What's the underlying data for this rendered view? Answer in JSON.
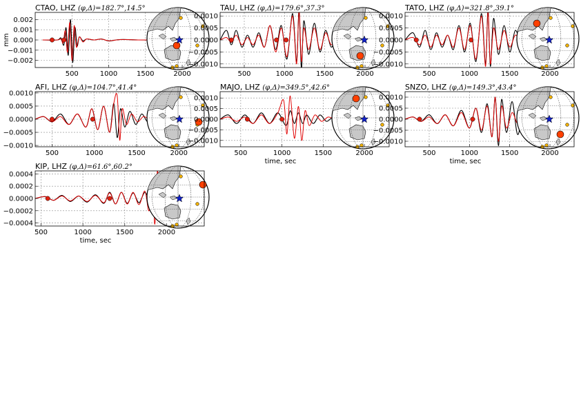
{
  "figure": {
    "ylabel": "mm",
    "xlabel": "time, sec"
  },
  "colors": {
    "observed": "#000000",
    "synthetic": "#e00000",
    "marker": "#e02010",
    "source_star": "#1020c8",
    "station_small": "#f0b000",
    "station_big": "#ff4000",
    "land": "#c8c8c8"
  },
  "panels": [
    {
      "title": "CTAO, LHZ",
      "math_label": "(φ,Δ)=182.7°,14.5°",
      "xticks": [
        "500",
        "1000",
        "1500",
        "2000"
      ],
      "yticks": [
        "0.002",
        "0.001",
        "0.000",
        "−0.001",
        "−0.002"
      ],
      "show_xlabel": false,
      "show_ylabel": true
    },
    {
      "title": "TAU, LHZ",
      "math_label": "(φ,Δ)=179.6°,37.3°",
      "xticks": [
        "500",
        "1000",
        "1500",
        "2000"
      ],
      "yticks": [
        "0.0010",
        "0.0005",
        "0.0000",
        "−0.0005",
        "−0.0010"
      ],
      "show_xlabel": false,
      "show_ylabel": false
    },
    {
      "title": "TATO, LHZ",
      "math_label": "(φ,Δ)=321.8°,39.1°",
      "xticks": [
        "500",
        "1000",
        "1500",
        "2000"
      ],
      "yticks": [
        "0.0010",
        "0.0005",
        "0.0000",
        "−0.0005",
        "−0.0010"
      ],
      "show_xlabel": false,
      "show_ylabel": false
    },
    {
      "title": "AFI, LHZ",
      "math_label": "(φ,Δ)=104.7°,41.4°",
      "xticks": [
        "500",
        "1000",
        "1500",
        "2000"
      ],
      "yticks": [
        "0.0010",
        "0.0005",
        "0.0000",
        "−0.0005",
        "−0.0010"
      ],
      "show_xlabel": false,
      "show_ylabel": false
    },
    {
      "title": "MAJO, LHZ",
      "math_label": "(φ,Δ)=349.5°,42.6°",
      "xticks": [
        "500",
        "1000",
        "1500",
        "2000"
      ],
      "yticks": [
        "0.0010",
        "0.0005",
        "0.0000",
        "−0.0005",
        "−0.0010"
      ],
      "show_xlabel": true,
      "show_ylabel": false
    },
    {
      "title": "SNZO, LHZ",
      "math_label": "(φ,Δ)=149.3°,43.4°",
      "xticks": [
        "500",
        "1000",
        "1500",
        "2000"
      ],
      "yticks": [
        "0.0010",
        "0.0005",
        "0.0000",
        "−0.0005",
        "−0.0010"
      ],
      "show_xlabel": true,
      "show_ylabel": false
    },
    {
      "title": "KIP, LHZ",
      "math_label": "(φ,Δ)=61.6°,60.2°",
      "xticks": [
        "500",
        "1000",
        "1500",
        "2000"
      ],
      "yticks": [
        "0.0004",
        "0.0002",
        "0.0000",
        "−0.0002",
        "−0.0004"
      ],
      "show_xlabel": true,
      "show_ylabel": false
    }
  ],
  "chart_data": [
    {
      "type": "line",
      "title": "CTAO, LHZ (φ,Δ)=182.7°,14.5°",
      "xlabel": "",
      "ylabel": "mm",
      "xlim": [
        0,
        2300
      ],
      "ylim": [
        -0.0027,
        0.0027
      ],
      "grid": true,
      "markers_x": [
        230,
        390
      ],
      "event_marker": "small red circle",
      "series": [
        {
          "role": "observed",
          "x": [
            100,
            300,
            350,
            390,
            420,
            450,
            480,
            510,
            540,
            570,
            600,
            650,
            700,
            800,
            900,
            1000,
            1100,
            1200,
            1400,
            1700
          ],
          "y": [
            0,
            0,
            0.0002,
            -0.0005,
            0.0012,
            -0.0015,
            0.002,
            -0.0022,
            0.0012,
            -0.0006,
            0.0003,
            -0.0001,
            0.0001,
            0,
            0.0001,
            -0.0001,
            0,
            5e-05,
            0,
            0
          ]
        },
        {
          "role": "synthetic",
          "x": [
            100,
            300,
            350,
            380,
            410,
            440,
            470,
            500,
            530,
            560,
            600,
            650,
            700,
            800,
            900,
            1000,
            1100,
            1200,
            1400,
            1700
          ],
          "y": [
            0,
            0,
            0.0001,
            -0.0003,
            0.0009,
            -0.0012,
            0.0017,
            -0.002,
            0.0014,
            -0.0007,
            0.0003,
            -0.0002,
            0.0001,
            0,
            8e-05,
            -8e-05,
            0,
            4e-05,
            0,
            0
          ]
        }
      ]
    },
    {
      "type": "line",
      "title": "TAU, LHZ (φ,Δ)=179.6°,37.3°",
      "xlim": [
        200,
        2300
      ],
      "ylim": [
        -0.00115,
        0.00115
      ],
      "grid": true,
      "markers_x": [
        340,
        900,
        1020
      ],
      "series": [
        {
          "role": "observed",
          "x": [
            200,
            280,
            340,
            400,
            470,
            540,
            610,
            680,
            750,
            820,
            890,
            960,
            1030,
            1100,
            1150,
            1180,
            1210,
            1240,
            1300,
            1370,
            1440,
            1510,
            1580,
            1650,
            1700
          ],
          "y": [
            0,
            0.0004,
            -0.0002,
            0.0004,
            -0.0003,
            0.0002,
            -0.0003,
            0.0003,
            -0.0003,
            0.0006,
            -0.0004,
            0.0006,
            -0.0008,
            0.0011,
            -0.0009,
            0.0012,
            -0.0012,
            0.0008,
            -0.0006,
            0.0007,
            -0.0005,
            0.0004,
            -0.0003,
            0.0002,
            0
          ]
        },
        {
          "role": "synthetic",
          "x": [
            200,
            280,
            340,
            400,
            470,
            540,
            610,
            680,
            750,
            820,
            890,
            960,
            1030,
            1100,
            1150,
            1180,
            1210,
            1240,
            1300,
            1370,
            1440,
            1510,
            1580,
            1650,
            1700
          ],
          "y": [
            0,
            0.0001,
            -0.0001,
            0.0002,
            -0.0002,
            0.0001,
            -0.0002,
            0.0002,
            -0.0003,
            0.0006,
            -0.0005,
            0.0005,
            -0.0007,
            0.001,
            -0.001,
            0.0013,
            -0.0009,
            0.0005,
            -0.0004,
            0.0005,
            -0.0004,
            0.0003,
            -0.0002,
            0.0001,
            0
          ]
        }
      ]
    },
    {
      "type": "line",
      "title": "TATO, LHZ (φ,Δ)=321.8°,39.1°",
      "xlim": [
        200,
        2300
      ],
      "ylim": [
        -0.00115,
        0.00115
      ],
      "grid": true,
      "markers_x": [
        340,
        1020
      ],
      "series": [
        {
          "role": "observed",
          "x": [
            200,
            300,
            380,
            450,
            520,
            590,
            660,
            730,
            800,
            870,
            940,
            1010,
            1080,
            1150,
            1200,
            1230,
            1260,
            1300,
            1360,
            1430,
            1500,
            1570,
            1640,
            1700
          ],
          "y": [
            0,
            0.0003,
            -0.0003,
            0.0004,
            -0.0004,
            0.0003,
            -0.0003,
            0.0002,
            -0.0004,
            0.0006,
            -0.0005,
            0.0007,
            -0.0009,
            0.0011,
            -0.001,
            0.0012,
            -0.0011,
            0.0009,
            -0.0006,
            0.0006,
            -0.0005,
            0.0004,
            -0.0002,
            0
          ]
        },
        {
          "role": "synthetic",
          "x": [
            200,
            300,
            380,
            450,
            520,
            590,
            660,
            730,
            800,
            870,
            940,
            1010,
            1080,
            1150,
            1200,
            1230,
            1260,
            1300,
            1360,
            1430,
            1500,
            1570,
            1640,
            1700
          ],
          "y": [
            0,
            0.0001,
            -0.0002,
            0.0002,
            -0.0003,
            0.0002,
            -0.0002,
            0.0002,
            -0.0003,
            0.0005,
            -0.0004,
            0.0006,
            -0.0008,
            0.001,
            -0.0011,
            0.0013,
            -0.001,
            0.0005,
            -0.0004,
            0.0004,
            -0.0003,
            0.0002,
            -0.0001,
            0
          ]
        }
      ]
    },
    {
      "type": "line",
      "title": "AFI, LHZ (φ,Δ)=104.7°,41.4°",
      "xlim": [
        300,
        2300
      ],
      "ylim": [
        -0.00105,
        0.00105
      ],
      "grid": true,
      "markers_x": [
        500,
        980
      ],
      "series": [
        {
          "role": "observed",
          "x": [
            300,
            400,
            500,
            600,
            700,
            800,
            900,
            970,
            1040,
            1110,
            1180,
            1230,
            1270,
            1310,
            1360,
            1420,
            1490,
            1560,
            1630,
            1700,
            1750
          ],
          "y": [
            0,
            0.0001,
            -0.0001,
            0.0002,
            -0.0002,
            0.0002,
            -0.0003,
            0.0004,
            -0.0004,
            0.0005,
            -0.0005,
            0.0006,
            -0.0007,
            0.0004,
            -0.0003,
            0.0003,
            -0.0002,
            0.0002,
            -0.0001,
            0.0001,
            0
          ]
        },
        {
          "role": "synthetic",
          "x": [
            300,
            400,
            500,
            600,
            700,
            800,
            900,
            970,
            1040,
            1110,
            1180,
            1230,
            1270,
            1300,
            1330,
            1380,
            1440,
            1510,
            1580,
            1650,
            1750
          ],
          "y": [
            0,
            0.0001,
            -0.0001,
            0.0001,
            -0.0002,
            0.0002,
            -0.0003,
            0.0004,
            -0.0004,
            0.0005,
            -0.0005,
            0.0006,
            0.0009,
            -0.0008,
            0.0004,
            -0.0002,
            0.0002,
            -0.0001,
            0.0001,
            0,
            0
          ]
        }
      ]
    },
    {
      "type": "line",
      "title": "MAJO, LHZ (φ,Δ)=349.5°,42.6°",
      "xlabel": "time, sec",
      "xlim": [
        250,
        2300
      ],
      "ylim": [
        -0.0013,
        0.0013
      ],
      "grid": true,
      "markers_x": [
        580,
        1000
      ],
      "series": [
        {
          "role": "observed",
          "x": [
            250,
            350,
            450,
            550,
            650,
            750,
            850,
            950,
            1050,
            1100,
            1150,
            1200,
            1250,
            1300,
            1380,
            1460,
            1540,
            1620,
            1700
          ],
          "y": [
            0,
            0.0002,
            -0.0002,
            0.0002,
            -0.0002,
            0.0003,
            -0.0002,
            0.0003,
            -0.0003,
            0.0004,
            -0.0002,
            0.0003,
            -0.0002,
            0.0002,
            -0.0002,
            0.0002,
            -0.0001,
            0.0001,
            0
          ]
        },
        {
          "role": "synthetic",
          "x": [
            250,
            350,
            450,
            550,
            650,
            750,
            850,
            950,
            1020,
            1060,
            1100,
            1150,
            1200,
            1240,
            1280,
            1330,
            1400,
            1480,
            1560,
            1640,
            1700
          ],
          "y": [
            0,
            0.0001,
            -0.0001,
            0.0001,
            -0.0002,
            0.0002,
            -0.0002,
            0.0003,
            0.0009,
            -0.0007,
            0.0011,
            -0.0009,
            0.0006,
            -0.001,
            0.0004,
            -0.0003,
            0.0002,
            -0.0001,
            0.0001,
            0,
            0
          ]
        }
      ]
    },
    {
      "type": "line",
      "title": "SNZO, LHZ (φ,Δ)=149.3°,43.4°",
      "xlabel": "time, sec",
      "xlim": [
        200,
        2300
      ],
      "ylim": [
        -0.00125,
        0.00125
      ],
      "grid": true,
      "markers_x": [
        380,
        1040
      ],
      "series": [
        {
          "role": "observed",
          "x": [
            200,
            300,
            400,
            500,
            600,
            700,
            800,
            900,
            1000,
            1080,
            1150,
            1220,
            1280,
            1320,
            1360,
            1400,
            1460,
            1530,
            1600,
            1680,
            1750,
            1800
          ],
          "y": [
            0,
            0.0001,
            -0.0001,
            0.0002,
            -0.0002,
            0.0002,
            -0.0003,
            0.0004,
            -0.0004,
            0.0005,
            -0.0006,
            0.0007,
            -0.0008,
            0.001,
            -0.0012,
            0.0009,
            -0.0006,
            0.0008,
            -0.0007,
            0.0006,
            -0.0004,
            0
          ]
        },
        {
          "role": "synthetic",
          "x": [
            200,
            300,
            400,
            500,
            600,
            700,
            800,
            900,
            1000,
            1080,
            1150,
            1220,
            1280,
            1320,
            1360,
            1400,
            1460,
            1530,
            1600,
            1680,
            1750,
            1800
          ],
          "y": [
            0,
            0.0001,
            -0.0001,
            0.0001,
            -0.0002,
            0.0002,
            -0.0003,
            0.0003,
            -0.0004,
            0.0005,
            -0.0005,
            0.0006,
            -0.0008,
            0.001,
            -0.001,
            0.0006,
            -0.0004,
            0.0003,
            -0.0002,
            0.0002,
            -0.0001,
            0
          ]
        }
      ]
    },
    {
      "type": "line",
      "title": "KIP, LHZ (φ,Δ)=61.6°,60.2°",
      "xlabel": "time, sec",
      "xlim": [
        430,
        2450
      ],
      "ylim": [
        -0.00045,
        0.00045
      ],
      "grid": true,
      "markers_x": [
        580,
        1320
      ],
      "series": [
        {
          "role": "observed",
          "x": [
            430,
            550,
            650,
            750,
            850,
            950,
            1050,
            1150,
            1250,
            1320,
            1390,
            1460,
            1530,
            1600,
            1670,
            1740,
            1800,
            1850
          ],
          "y": [
            0,
            3e-05,
            -3e-05,
            5e-05,
            -5e-05,
            4e-05,
            -6e-05,
            6e-05,
            -8e-05,
            0.0001,
            -9e-05,
            0.0001,
            -8e-05,
            9e-05,
            -7e-05,
            0.0001,
            -5e-05,
            0
          ]
        },
        {
          "role": "synthetic",
          "x": [
            430,
            550,
            650,
            750,
            850,
            950,
            1050,
            1150,
            1250,
            1320,
            1390,
            1460,
            1530,
            1600,
            1670,
            1740,
            1790,
            1830,
            1860,
            1890,
            1920,
            1950
          ],
          "y": [
            0,
            3e-05,
            -3e-05,
            4e-05,
            -4e-05,
            4e-05,
            -5e-05,
            5e-05,
            -7e-05,
            9e-05,
            -9e-05,
            0.0001,
            -9e-05,
            0.0001,
            -0.0001,
            0.00012,
            -0.0002,
            0.0003,
            -0.00042,
            0.00045,
            -0.0001,
            0
          ]
        }
      ]
    }
  ]
}
